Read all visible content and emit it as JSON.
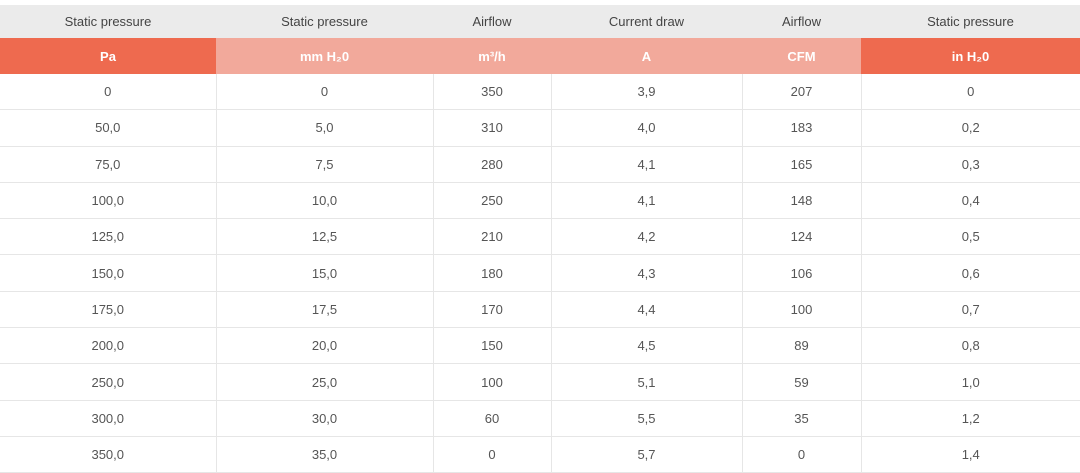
{
  "table": {
    "header_top": [
      "Static pressure",
      "Static pressure",
      "Airflow",
      "Current draw",
      "Airflow",
      "Static pressure"
    ],
    "header_units": [
      "Pa",
      "mm H₂0",
      "m³/h",
      "A",
      "CFM",
      "in H₂0"
    ],
    "rows": [
      [
        "0",
        "0",
        "350",
        "3,9",
        "207",
        "0"
      ],
      [
        "50,0",
        "5,0",
        "310",
        "4,0",
        "183",
        "0,2"
      ],
      [
        "75,0",
        "7,5",
        "280",
        "4,1",
        "165",
        "0,3"
      ],
      [
        "100,0",
        "10,0",
        "250",
        "4,1",
        "148",
        "0,4"
      ],
      [
        "125,0",
        "12,5",
        "210",
        "4,2",
        "124",
        "0,5"
      ],
      [
        "150,0",
        "15,0",
        "180",
        "4,3",
        "106",
        "0,6"
      ],
      [
        "175,0",
        "17,5",
        "170",
        "4,4",
        "100",
        "0,7"
      ],
      [
        "200,0",
        "20,0",
        "150",
        "4,5",
        "89",
        "0,8"
      ],
      [
        "250,0",
        "25,0",
        "100",
        "5,1",
        "59",
        "1,0"
      ],
      [
        "300,0",
        "30,0",
        "60",
        "5,5",
        "35",
        "1,2"
      ],
      [
        "350,0",
        "35,0",
        "0",
        "5,7",
        "0",
        "1,4"
      ]
    ]
  }
}
